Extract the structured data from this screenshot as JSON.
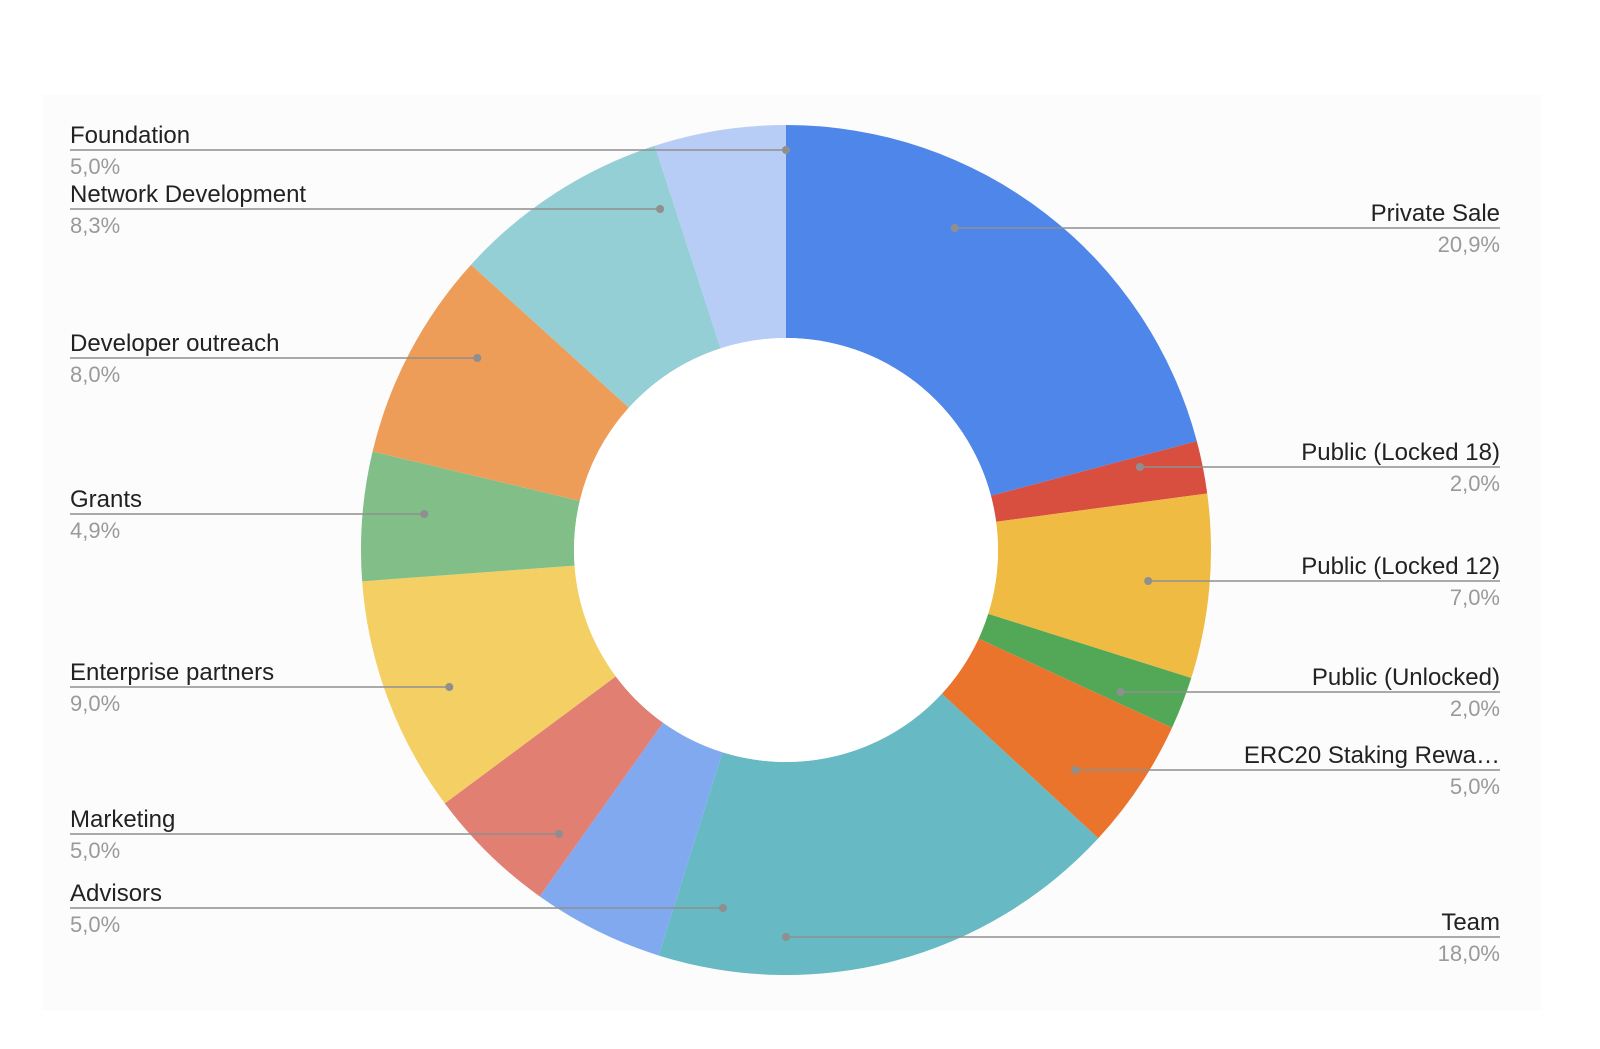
{
  "chart_data": {
    "type": "pie",
    "subtype": "donut",
    "title": "",
    "slices": [
      {
        "label": "Private Sale",
        "value_label": "20,9%",
        "value": 20.9,
        "color": "#4f86e9"
      },
      {
        "label": "Public (Locked 18)",
        "value_label": "2,0%",
        "value": 2.0,
        "color": "#d94f3f"
      },
      {
        "label": "Public (Locked 12)",
        "value_label": "7,0%",
        "value": 7.0,
        "color": "#f0bb42"
      },
      {
        "label": "Public (Unlocked)",
        "value_label": "2,0%",
        "value": 2.0,
        "color": "#53a858"
      },
      {
        "label": "ERC20 Staking Rewa…",
        "value_label": "5,0%",
        "value": 5.0,
        "color": "#eb742d"
      },
      {
        "label": "Team",
        "value_label": "18,0%",
        "value": 18.0,
        "color": "#67b9c3"
      },
      {
        "label": "Advisors",
        "value_label": "5,0%",
        "value": 5.0,
        "color": "#80a9f0"
      },
      {
        "label": "Marketing",
        "value_label": "5,0%",
        "value": 5.0,
        "color": "#e07f72"
      },
      {
        "label": "Enterprise partners",
        "value_label": "9,0%",
        "value": 9.0,
        "color": "#f4d064"
      },
      {
        "label": "Grants",
        "value_label": "4,9%",
        "value": 4.9,
        "color": "#82bf88"
      },
      {
        "label": "Developer outreach",
        "value_label": "8,0%",
        "value": 8.0,
        "color": "#ee9d59"
      },
      {
        "label": "Network Development",
        "value_label": "8,3%",
        "value": 8.3,
        "color": "#94cfd5"
      },
      {
        "label": "Foundation",
        "value_label": "5,0%",
        "value": 5.0,
        "color": "#b8cdf6"
      }
    ],
    "start_angle_deg": 0,
    "direction": "clockwise",
    "legend": "none",
    "labels": "leader-lines"
  }
}
